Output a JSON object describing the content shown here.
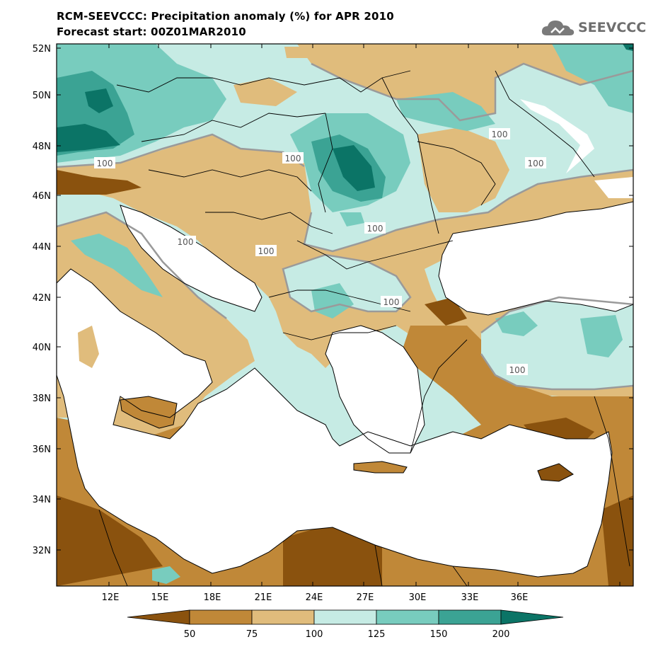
{
  "header": {
    "title_line1": "RCM-SEEVCCC: Precipitation anomaly (%) for APR 2010",
    "title_line2": "Forecast start: 00Z01MAR2010",
    "logo_text": "SEEVCCC",
    "logo_icon": "cloud-logo-icon"
  },
  "map": {
    "lat_labels": [
      "52N",
      "50N",
      "48N",
      "46N",
      "44N",
      "42N",
      "40N",
      "38N",
      "36N",
      "34N",
      "32N"
    ],
    "lon_labels": [
      "12E",
      "15E",
      "18E",
      "21E",
      "24E",
      "27E",
      "30E",
      "33E",
      "36E"
    ],
    "contour_labels": [
      "100",
      "100",
      "100",
      "100",
      "100",
      "100",
      "100",
      "100",
      "100"
    ],
    "colors": {
      "below_50": "#8a520e",
      "50_75": "#c08838",
      "75_100": "#e0bc7c",
      "100_125": "#c6ebe4",
      "125_150": "#78ccbe",
      "150_200": "#3ba394",
      "above_200": "#0b7466",
      "sea": "#ffffff",
      "border": "#000000",
      "contour": "#9a9a9a"
    }
  },
  "colorbar": {
    "labels": [
      "50",
      "75",
      "100",
      "125",
      "150",
      "200"
    ],
    "colors": [
      "#8a520e",
      "#c08838",
      "#e0bc7c",
      "#c6ebe4",
      "#78ccbe",
      "#3ba394",
      "#0b7466"
    ]
  }
}
